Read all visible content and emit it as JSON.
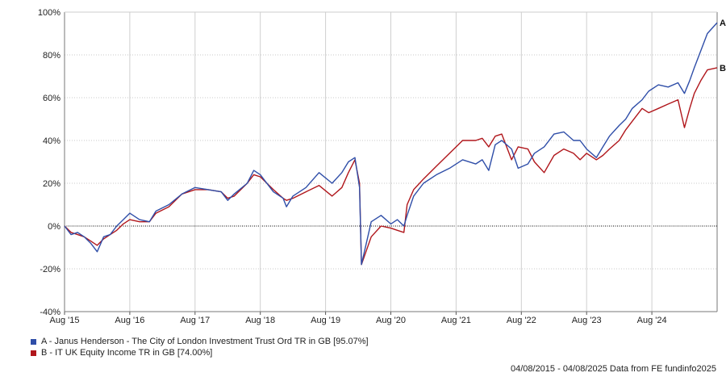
{
  "chart_data": {
    "type": "line",
    "x_range": [
      "04/08/2015",
      "04/08/2025"
    ],
    "ylim": [
      -40,
      100
    ],
    "y_ticks": [
      "100%",
      "80%",
      "60%",
      "40%",
      "20%",
      "0%",
      "-20%",
      "-40%"
    ],
    "y_tick_values": [
      100,
      80,
      60,
      40,
      20,
      0,
      -20,
      -40
    ],
    "x_tick_labels": [
      "Aug '15",
      "Aug '16",
      "Aug '17",
      "Aug '18",
      "Aug '19",
      "Aug '20",
      "Aug '21",
      "Aug '22",
      "Aug '23",
      "Aug '24"
    ],
    "x_tick_values": [
      2015.6,
      2016.6,
      2017.6,
      2018.6,
      2019.6,
      2020.6,
      2021.6,
      2022.6,
      2023.6,
      2024.6
    ],
    "x_end": 2025.6,
    "grid": true,
    "zero_line": "dotted",
    "series": [
      {
        "key": "A",
        "name": "A - Janus Henderson - The City of London Investment Trust Ord TR in GB [95.07%]",
        "end_label": "A",
        "color": "#2f4ea8",
        "points": [
          [
            2015.6,
            0
          ],
          [
            2015.7,
            -4
          ],
          [
            2015.8,
            -3
          ],
          [
            2015.9,
            -5
          ],
          [
            2016.0,
            -8
          ],
          [
            2016.1,
            -12
          ],
          [
            2016.2,
            -5
          ],
          [
            2016.3,
            -4
          ],
          [
            2016.4,
            0
          ],
          [
            2016.5,
            3
          ],
          [
            2016.6,
            6
          ],
          [
            2016.75,
            3
          ],
          [
            2016.9,
            2
          ],
          [
            2017.0,
            7
          ],
          [
            2017.2,
            10
          ],
          [
            2017.4,
            15
          ],
          [
            2017.6,
            18
          ],
          [
            2017.8,
            17
          ],
          [
            2018.0,
            16
          ],
          [
            2018.1,
            12
          ],
          [
            2018.2,
            15
          ],
          [
            2018.4,
            20
          ],
          [
            2018.5,
            26
          ],
          [
            2018.6,
            24
          ],
          [
            2018.8,
            16
          ],
          [
            2018.95,
            13
          ],
          [
            2019.0,
            9
          ],
          [
            2019.1,
            14
          ],
          [
            2019.3,
            18
          ],
          [
            2019.5,
            25
          ],
          [
            2019.7,
            20
          ],
          [
            2019.85,
            25
          ],
          [
            2019.95,
            30
          ],
          [
            2020.05,
            32
          ],
          [
            2020.12,
            18
          ],
          [
            2020.15,
            -18
          ],
          [
            2020.3,
            2
          ],
          [
            2020.45,
            5
          ],
          [
            2020.6,
            1
          ],
          [
            2020.7,
            3
          ],
          [
            2020.8,
            0
          ],
          [
            2020.85,
            5
          ],
          [
            2020.95,
            14
          ],
          [
            2021.1,
            20
          ],
          [
            2021.3,
            24
          ],
          [
            2021.5,
            27
          ],
          [
            2021.7,
            31
          ],
          [
            2021.9,
            29
          ],
          [
            2022.0,
            31
          ],
          [
            2022.1,
            26
          ],
          [
            2022.2,
            38
          ],
          [
            2022.3,
            40
          ],
          [
            2022.45,
            36
          ],
          [
            2022.55,
            27
          ],
          [
            2022.7,
            29
          ],
          [
            2022.8,
            34
          ],
          [
            2022.95,
            37
          ],
          [
            2023.1,
            43
          ],
          [
            2023.25,
            44
          ],
          [
            2023.4,
            40
          ],
          [
            2023.5,
            40
          ],
          [
            2023.6,
            36
          ],
          [
            2023.75,
            32
          ],
          [
            2023.85,
            37
          ],
          [
            2023.95,
            42
          ],
          [
            2024.1,
            47
          ],
          [
            2024.2,
            50
          ],
          [
            2024.3,
            55
          ],
          [
            2024.45,
            59
          ],
          [
            2024.55,
            63
          ],
          [
            2024.7,
            66
          ],
          [
            2024.85,
            65
          ],
          [
            2025.0,
            67
          ],
          [
            2025.1,
            62
          ],
          [
            2025.18,
            68
          ],
          [
            2025.25,
            74
          ],
          [
            2025.35,
            82
          ],
          [
            2025.45,
            90
          ],
          [
            2025.6,
            95.07
          ]
        ]
      },
      {
        "key": "B",
        "name": "B - IT UK Equity Income TR in GB [74.00%]",
        "end_label": "B",
        "color": "#b0161b",
        "points": [
          [
            2015.6,
            0
          ],
          [
            2015.7,
            -3
          ],
          [
            2015.8,
            -4
          ],
          [
            2015.9,
            -5
          ],
          [
            2016.0,
            -7
          ],
          [
            2016.1,
            -9
          ],
          [
            2016.2,
            -6
          ],
          [
            2016.3,
            -4
          ],
          [
            2016.4,
            -2
          ],
          [
            2016.5,
            1
          ],
          [
            2016.6,
            3
          ],
          [
            2016.75,
            2
          ],
          [
            2016.9,
            2
          ],
          [
            2017.0,
            6
          ],
          [
            2017.2,
            9
          ],
          [
            2017.4,
            15
          ],
          [
            2017.6,
            17
          ],
          [
            2017.8,
            17
          ],
          [
            2018.0,
            16
          ],
          [
            2018.1,
            13
          ],
          [
            2018.2,
            14
          ],
          [
            2018.4,
            20
          ],
          [
            2018.5,
            24
          ],
          [
            2018.6,
            23
          ],
          [
            2018.8,
            17
          ],
          [
            2018.95,
            13
          ],
          [
            2019.0,
            12
          ],
          [
            2019.1,
            13
          ],
          [
            2019.3,
            16
          ],
          [
            2019.5,
            19
          ],
          [
            2019.7,
            14
          ],
          [
            2019.85,
            18
          ],
          [
            2019.95,
            25
          ],
          [
            2020.05,
            31
          ],
          [
            2020.12,
            20
          ],
          [
            2020.15,
            -18
          ],
          [
            2020.3,
            -5
          ],
          [
            2020.45,
            0
          ],
          [
            2020.6,
            -1
          ],
          [
            2020.7,
            -2
          ],
          [
            2020.8,
            -3
          ],
          [
            2020.85,
            10
          ],
          [
            2020.95,
            17
          ],
          [
            2021.1,
            22
          ],
          [
            2021.3,
            28
          ],
          [
            2021.5,
            34
          ],
          [
            2021.7,
            40
          ],
          [
            2021.9,
            40
          ],
          [
            2022.0,
            41
          ],
          [
            2022.1,
            37
          ],
          [
            2022.2,
            42
          ],
          [
            2022.3,
            43
          ],
          [
            2022.45,
            31
          ],
          [
            2022.55,
            37
          ],
          [
            2022.7,
            36
          ],
          [
            2022.8,
            30
          ],
          [
            2022.95,
            25
          ],
          [
            2023.1,
            33
          ],
          [
            2023.25,
            36
          ],
          [
            2023.4,
            34
          ],
          [
            2023.5,
            31
          ],
          [
            2023.6,
            34
          ],
          [
            2023.75,
            31
          ],
          [
            2023.85,
            33
          ],
          [
            2023.95,
            36
          ],
          [
            2024.1,
            40
          ],
          [
            2024.2,
            45
          ],
          [
            2024.3,
            49
          ],
          [
            2024.45,
            55
          ],
          [
            2024.55,
            53
          ],
          [
            2024.7,
            55
          ],
          [
            2024.85,
            57
          ],
          [
            2025.0,
            59
          ],
          [
            2025.1,
            46
          ],
          [
            2025.18,
            55
          ],
          [
            2025.25,
            62
          ],
          [
            2025.35,
            68
          ],
          [
            2025.45,
            73
          ],
          [
            2025.6,
            74.0
          ]
        ]
      }
    ]
  },
  "legend": {
    "a_label": "A - Janus Henderson - The City of London Investment Trust Ord TR in GB [95.07%]",
    "b_label": "B - IT UK Equity Income TR in GB [74.00%]",
    "a_color": "#2f4ea8",
    "b_color": "#b0161b"
  },
  "footer": "04/08/2015 - 04/08/2025 Data from FE fundinfo2025"
}
